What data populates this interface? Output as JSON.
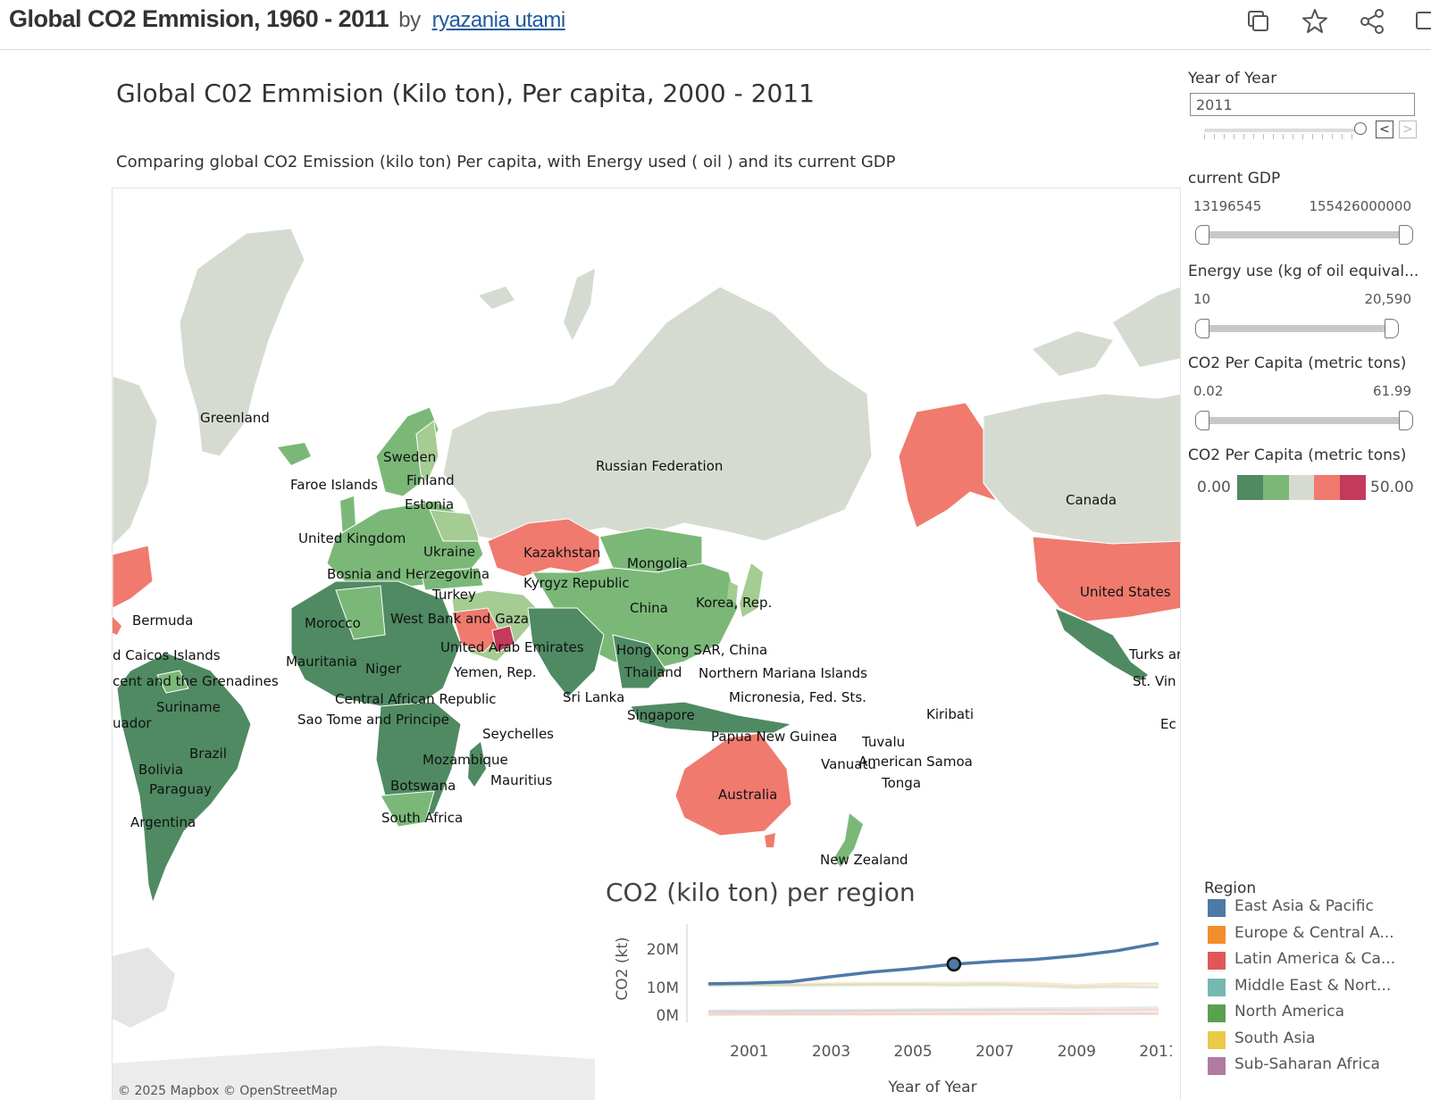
{
  "header": {
    "title": "Global CO2 Emmision, 1960 - 2011",
    "by": "by",
    "author": "ryazania utami",
    "icons": [
      "copy-icon",
      "star-icon",
      "share-icon",
      "comment-icon"
    ]
  },
  "dashboard": {
    "title": "Global C02 Emmision (Kilo ton), Per capita, 2000 - 2011",
    "subtitle": "Comparing global CO2 Emission (kilo ton) Per capita, with Energy used ( oil ) and its current GDP"
  },
  "map": {
    "credit": "© 2025 Mapbox  © OpenStreetMap",
    "labels": [
      "Greenland",
      "Sweden",
      "Finland",
      "Faroe Islands",
      "Estonia",
      "United Kingdom",
      "Ukraine",
      "Bosnia and Herzegovina",
      "Turkey",
      "Morocco",
      "West Bank and Gaza",
      "United Arab Emirates",
      "Mauritania",
      "Niger",
      "Yemen, Rep.",
      "Central African Republic",
      "Sao Tome and Principe",
      "Seychelles",
      "Mozambique",
      "Mauritius",
      "Botswana",
      "South Africa",
      "Russian Federation",
      "Kazakhstan",
      "Kyrgyz Republic",
      "Mongolia",
      "China",
      "Korea, Rep.",
      "Hong Kong SAR, China",
      "Thailand",
      "Northern Mariana Islands",
      "Micronesia, Fed. Sts.",
      "Sri Lanka",
      "Singapore",
      "Papua New Guinea",
      "Kiribati",
      "Tuvalu",
      "Vanuatu",
      "American Samoa",
      "Tonga",
      "Australia",
      "New Zealand",
      "Canada",
      "United States",
      "Turks ar",
      "St. Vin",
      "Ec",
      "Bermuda",
      "d Caicos Islands",
      "cent and the Grenadines",
      "Suriname",
      "uador",
      "Brazil",
      "Bolivia",
      "Paraguay",
      "Argentina"
    ],
    "colors": {
      "dark_green": "#4f8a62",
      "mid_green": "#7bb878",
      "light_green": "#a5cc92",
      "neutral": "#d6dbd1",
      "salmon": "#f07a6e",
      "crimson": "#c33a5b",
      "ocean": "#ffffff",
      "ice": "#e5e5e5"
    }
  },
  "region_chart": {
    "title": "CO2 (kilo ton) per region",
    "ylabel": "CO2 (kt)",
    "xlabel": "Year of Year",
    "yticks": [
      "20M",
      "10M",
      "0M"
    ],
    "xticks": [
      "2001",
      "2003",
      "2005",
      "2007",
      "2009",
      "2011"
    ]
  },
  "chart_data": {
    "type": "line",
    "title": "CO2 (kilo ton) per region",
    "xlabel": "Year of Year",
    "ylabel": "CO2 (kt)",
    "x": [
      2000,
      2001,
      2002,
      2003,
      2004,
      2005,
      2006,
      2007,
      2008,
      2009,
      2010,
      2011
    ],
    "ylim": [
      0,
      25000000
    ],
    "series": [
      {
        "name": "East Asia & Pacific",
        "color": "#4e79a7",
        "values": [
          9500000,
          9700000,
          10100000,
          11600000,
          13000000,
          14000000,
          15300000,
          16100000,
          16700000,
          17800000,
          19300000,
          21500000
        ]
      },
      {
        "name": "Europe & Central A...",
        "color": "#f28e2b",
        "values": [
          9300000,
          9400000,
          9400000,
          9600000,
          9700000,
          9700000,
          9800000,
          9800000,
          9700000,
          9000000,
          9500000,
          9500000
        ]
      },
      {
        "name": "Latin America & Ca...",
        "color": "#e15759",
        "values": [
          1300000,
          1300000,
          1350000,
          1400000,
          1450000,
          1500000,
          1550000,
          1600000,
          1650000,
          1600000,
          1700000,
          1750000
        ]
      },
      {
        "name": "Middle East & Nort...",
        "color": "#76b7b2",
        "values": [
          1500000,
          1550000,
          1650000,
          1700000,
          1800000,
          1900000,
          2000000,
          2100000,
          2200000,
          2300000,
          2400000,
          2500000
        ]
      },
      {
        "name": "North America",
        "color": "#59a14f",
        "values": [
          9000000,
          9100000,
          9000000,
          9100000,
          9200000,
          9200000,
          9100000,
          9200000,
          8900000,
          8400000,
          8700000,
          8500000
        ]
      },
      {
        "name": "South Asia",
        "color": "#edc948",
        "values": [
          400000,
          420000,
          440000,
          460000,
          480000,
          500000,
          530000,
          560000,
          600000,
          650000,
          700000,
          750000
        ]
      },
      {
        "name": "Sub-Saharan Africa",
        "color": "#b07aa1",
        "values": [
          600000,
          620000,
          630000,
          650000,
          670000,
          690000,
          700000,
          710000,
          720000,
          730000,
          750000,
          770000
        ]
      }
    ],
    "highlight": {
      "series": "East Asia & Pacific",
      "x": 2006
    }
  },
  "filters": {
    "year": {
      "label": "Year of Year",
      "value": "2011",
      "prev": "<",
      "next": ">"
    },
    "gdp": {
      "label": "current GDP",
      "min": "13196545",
      "max": "155426000000"
    },
    "energy": {
      "label": "Energy use (kg of oil equival...",
      "min": "10",
      "max": "20,590"
    },
    "co2pc": {
      "label": "CO2 Per Capita (metric tons)",
      "min": "0.02",
      "max": "61.99"
    },
    "color_legend": {
      "label": "CO2 Per Capita (metric tons)",
      "min": "0.00",
      "max": "50.00",
      "colors": [
        "#4f8a62",
        "#7bb878",
        "#d6dbd1",
        "#f07a6e",
        "#c33a5b"
      ]
    }
  },
  "legend": {
    "title": "Region",
    "items": [
      {
        "label": "East Asia & Pacific",
        "color": "#4e79a7"
      },
      {
        "label": "Europe & Central A...",
        "color": "#f28e2b"
      },
      {
        "label": "Latin America & Ca...",
        "color": "#e15759"
      },
      {
        "label": "Middle East & Nort...",
        "color": "#76b7b2"
      },
      {
        "label": "North America",
        "color": "#59a14f"
      },
      {
        "label": "South Asia",
        "color": "#edc948"
      },
      {
        "label": "Sub-Saharan Africa",
        "color": "#b07aa1"
      }
    ]
  }
}
